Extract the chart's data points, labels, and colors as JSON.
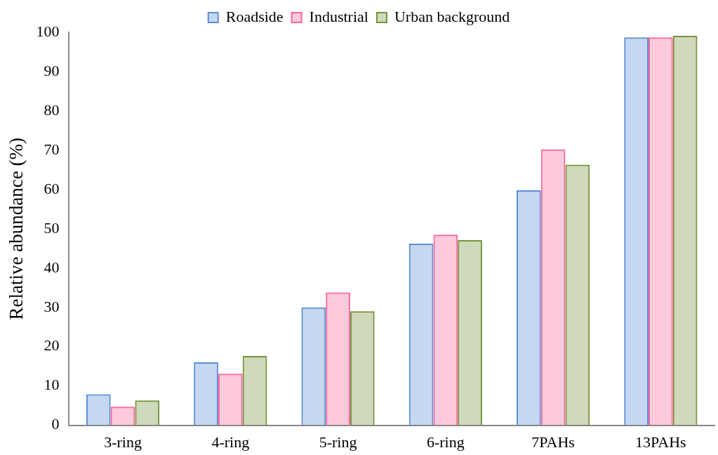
{
  "chart_data": {
    "type": "bar",
    "ylabel": "Relative abundance (%)",
    "categories": [
      "3-ring",
      "4-ring",
      "5-ring",
      "6-ring",
      "7PAHs",
      "13PAHs"
    ],
    "series": [
      {
        "name": "Roadside",
        "color": "#5b8fd6",
        "values": [
          7.9,
          16.0,
          30.0,
          46.2,
          59.8,
          98.7
        ]
      },
      {
        "name": "Industrial",
        "color": "#ff6699",
        "values": [
          4.7,
          13.1,
          33.8,
          48.5,
          70.2,
          98.7
        ]
      },
      {
        "name": "Urban background",
        "color": "#76933c",
        "values": [
          6.3,
          17.6,
          29.0,
          47.1,
          66.3,
          99.1
        ]
      }
    ],
    "ylim": [
      0,
      100
    ],
    "yticks": [
      0,
      10,
      20,
      30,
      40,
      50,
      60,
      70,
      80,
      90,
      100
    ],
    "grid": false,
    "legend": "top"
  }
}
